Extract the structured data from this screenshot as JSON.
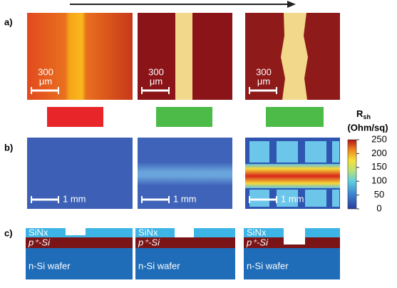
{
  "labels": {
    "a": "a)",
    "b": "b)",
    "c": "c)"
  },
  "panel_a": {
    "scale_bars": [
      [
        "300",
        "μm"
      ],
      [
        "300",
        "μm"
      ],
      [
        "300",
        "μm"
      ]
    ]
  },
  "panel_b": {
    "scale_bars": [
      "1 mm",
      "1 mm",
      "1 mm"
    ]
  },
  "colorbar": {
    "symbol": "R",
    "subscript": "sh",
    "unit": "(Ohm/sq)",
    "lim": [
      0,
      250
    ],
    "ticks": [
      0,
      50,
      100,
      150,
      200,
      250
    ]
  },
  "panel_c": {
    "diagrams": [
      {
        "sinx": "SiNx",
        "p_layer": "p⁺-Si",
        "wafer": "n-Si wafer"
      },
      {
        "sinx": "SiNx",
        "p_layer": "p⁺-Si",
        "wafer": "n-Si wafer"
      },
      {
        "sinx": "SiNx",
        "p_layer": "p⁺-Si",
        "wafer": "n-Si wafer"
      }
    ]
  }
}
